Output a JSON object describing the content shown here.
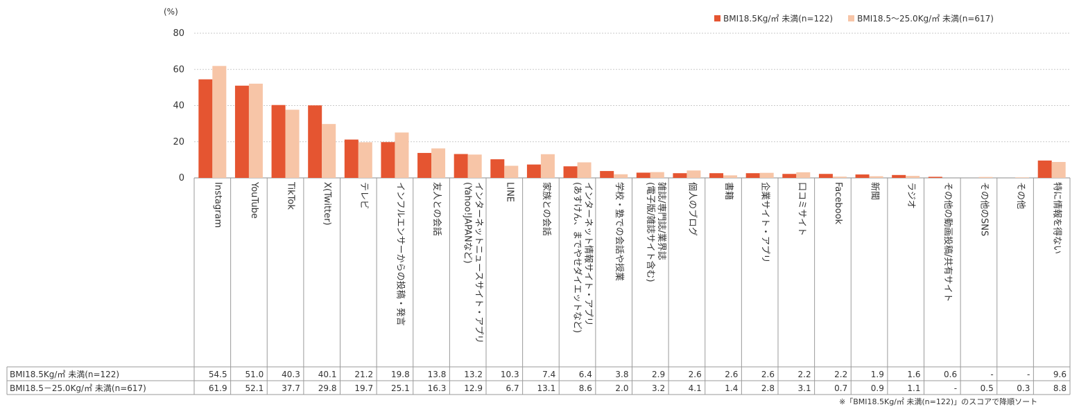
{
  "colors": {
    "series1": "#e55531",
    "series2": "#f7c5a7",
    "grid": "#c9c9c9",
    "axis": "#888888"
  },
  "unit_label": "(%)",
  "footnote": "※「BMI18.5Kg/㎡ 未満(n=122)」のスコアで降順ソート",
  "chart_data": {
    "type": "bar",
    "ylim": [
      0,
      80
    ],
    "yticks": [
      0,
      20,
      40,
      60,
      80
    ],
    "legend_position": "top-right",
    "categories": [
      "Instagram",
      "YouTube",
      "TikTok",
      "X(Twitter)",
      "テレビ",
      "インフルエンサーからの投稿・発言",
      "友人との会話",
      "インターネットニュースサイト・アプリ\n(Yahoo!JAPANなど)",
      "LINE",
      "家族との会話",
      "インターネット情報サイト・アプリ\n(あすけん、までやせダイエットなど)",
      "学校・塾での会話や授業",
      "雑誌/専門誌/業界誌\n(電子版/雑誌サイト含む)",
      "個人のブログ",
      "書籍",
      "企業サイト・アプリ",
      "口コミサイト",
      "Facebook",
      "新聞",
      "ラジオ",
      "その他の動画投稿/共有サイト",
      "その他のSNS",
      "その他",
      "特に情報を得ない"
    ],
    "series": [
      {
        "name": "BMI18.5Kg/㎡ 未満(n=122)",
        "values": [
          54.5,
          51.0,
          40.3,
          40.1,
          21.2,
          19.8,
          13.8,
          13.2,
          10.3,
          7.4,
          6.4,
          3.8,
          2.9,
          2.6,
          2.6,
          2.6,
          2.2,
          2.2,
          1.9,
          1.6,
          0.6,
          null,
          null,
          9.6
        ],
        "labels": [
          "54.5",
          "51.0",
          "40.3",
          "40.1",
          "21.2",
          "19.8",
          "13.8",
          "13.2",
          "10.3",
          "7.4",
          "6.4",
          "3.8",
          "2.9",
          "2.6",
          "2.6",
          "2.6",
          "2.2",
          "2.2",
          "1.9",
          "1.6",
          "0.6",
          "-",
          "-",
          "9.6"
        ]
      },
      {
        "name": "BMI18.5～25.0Kg/㎡ 未満(n=617)",
        "values": [
          61.9,
          52.1,
          37.7,
          29.8,
          19.7,
          25.1,
          16.3,
          12.9,
          6.7,
          13.1,
          8.6,
          2.0,
          3.2,
          4.1,
          1.4,
          2.8,
          3.1,
          0.7,
          0.9,
          1.1,
          null,
          0.5,
          0.3,
          8.8
        ],
        "labels": [
          "61.9",
          "52.1",
          "37.7",
          "29.8",
          "19.7",
          "25.1",
          "16.3",
          "12.9",
          "6.7",
          "13.1",
          "8.6",
          "2.0",
          "3.2",
          "4.1",
          "1.4",
          "2.8",
          "3.1",
          "0.7",
          "0.9",
          "1.1",
          "-",
          "0.5",
          "0.3",
          "8.8"
        ]
      }
    ],
    "table_row_labels": [
      "BMI18.5Kg/㎡ 未満(n=122)",
      "BMI18.5－25.0Kg/㎡ 未満(n=617)"
    ]
  }
}
